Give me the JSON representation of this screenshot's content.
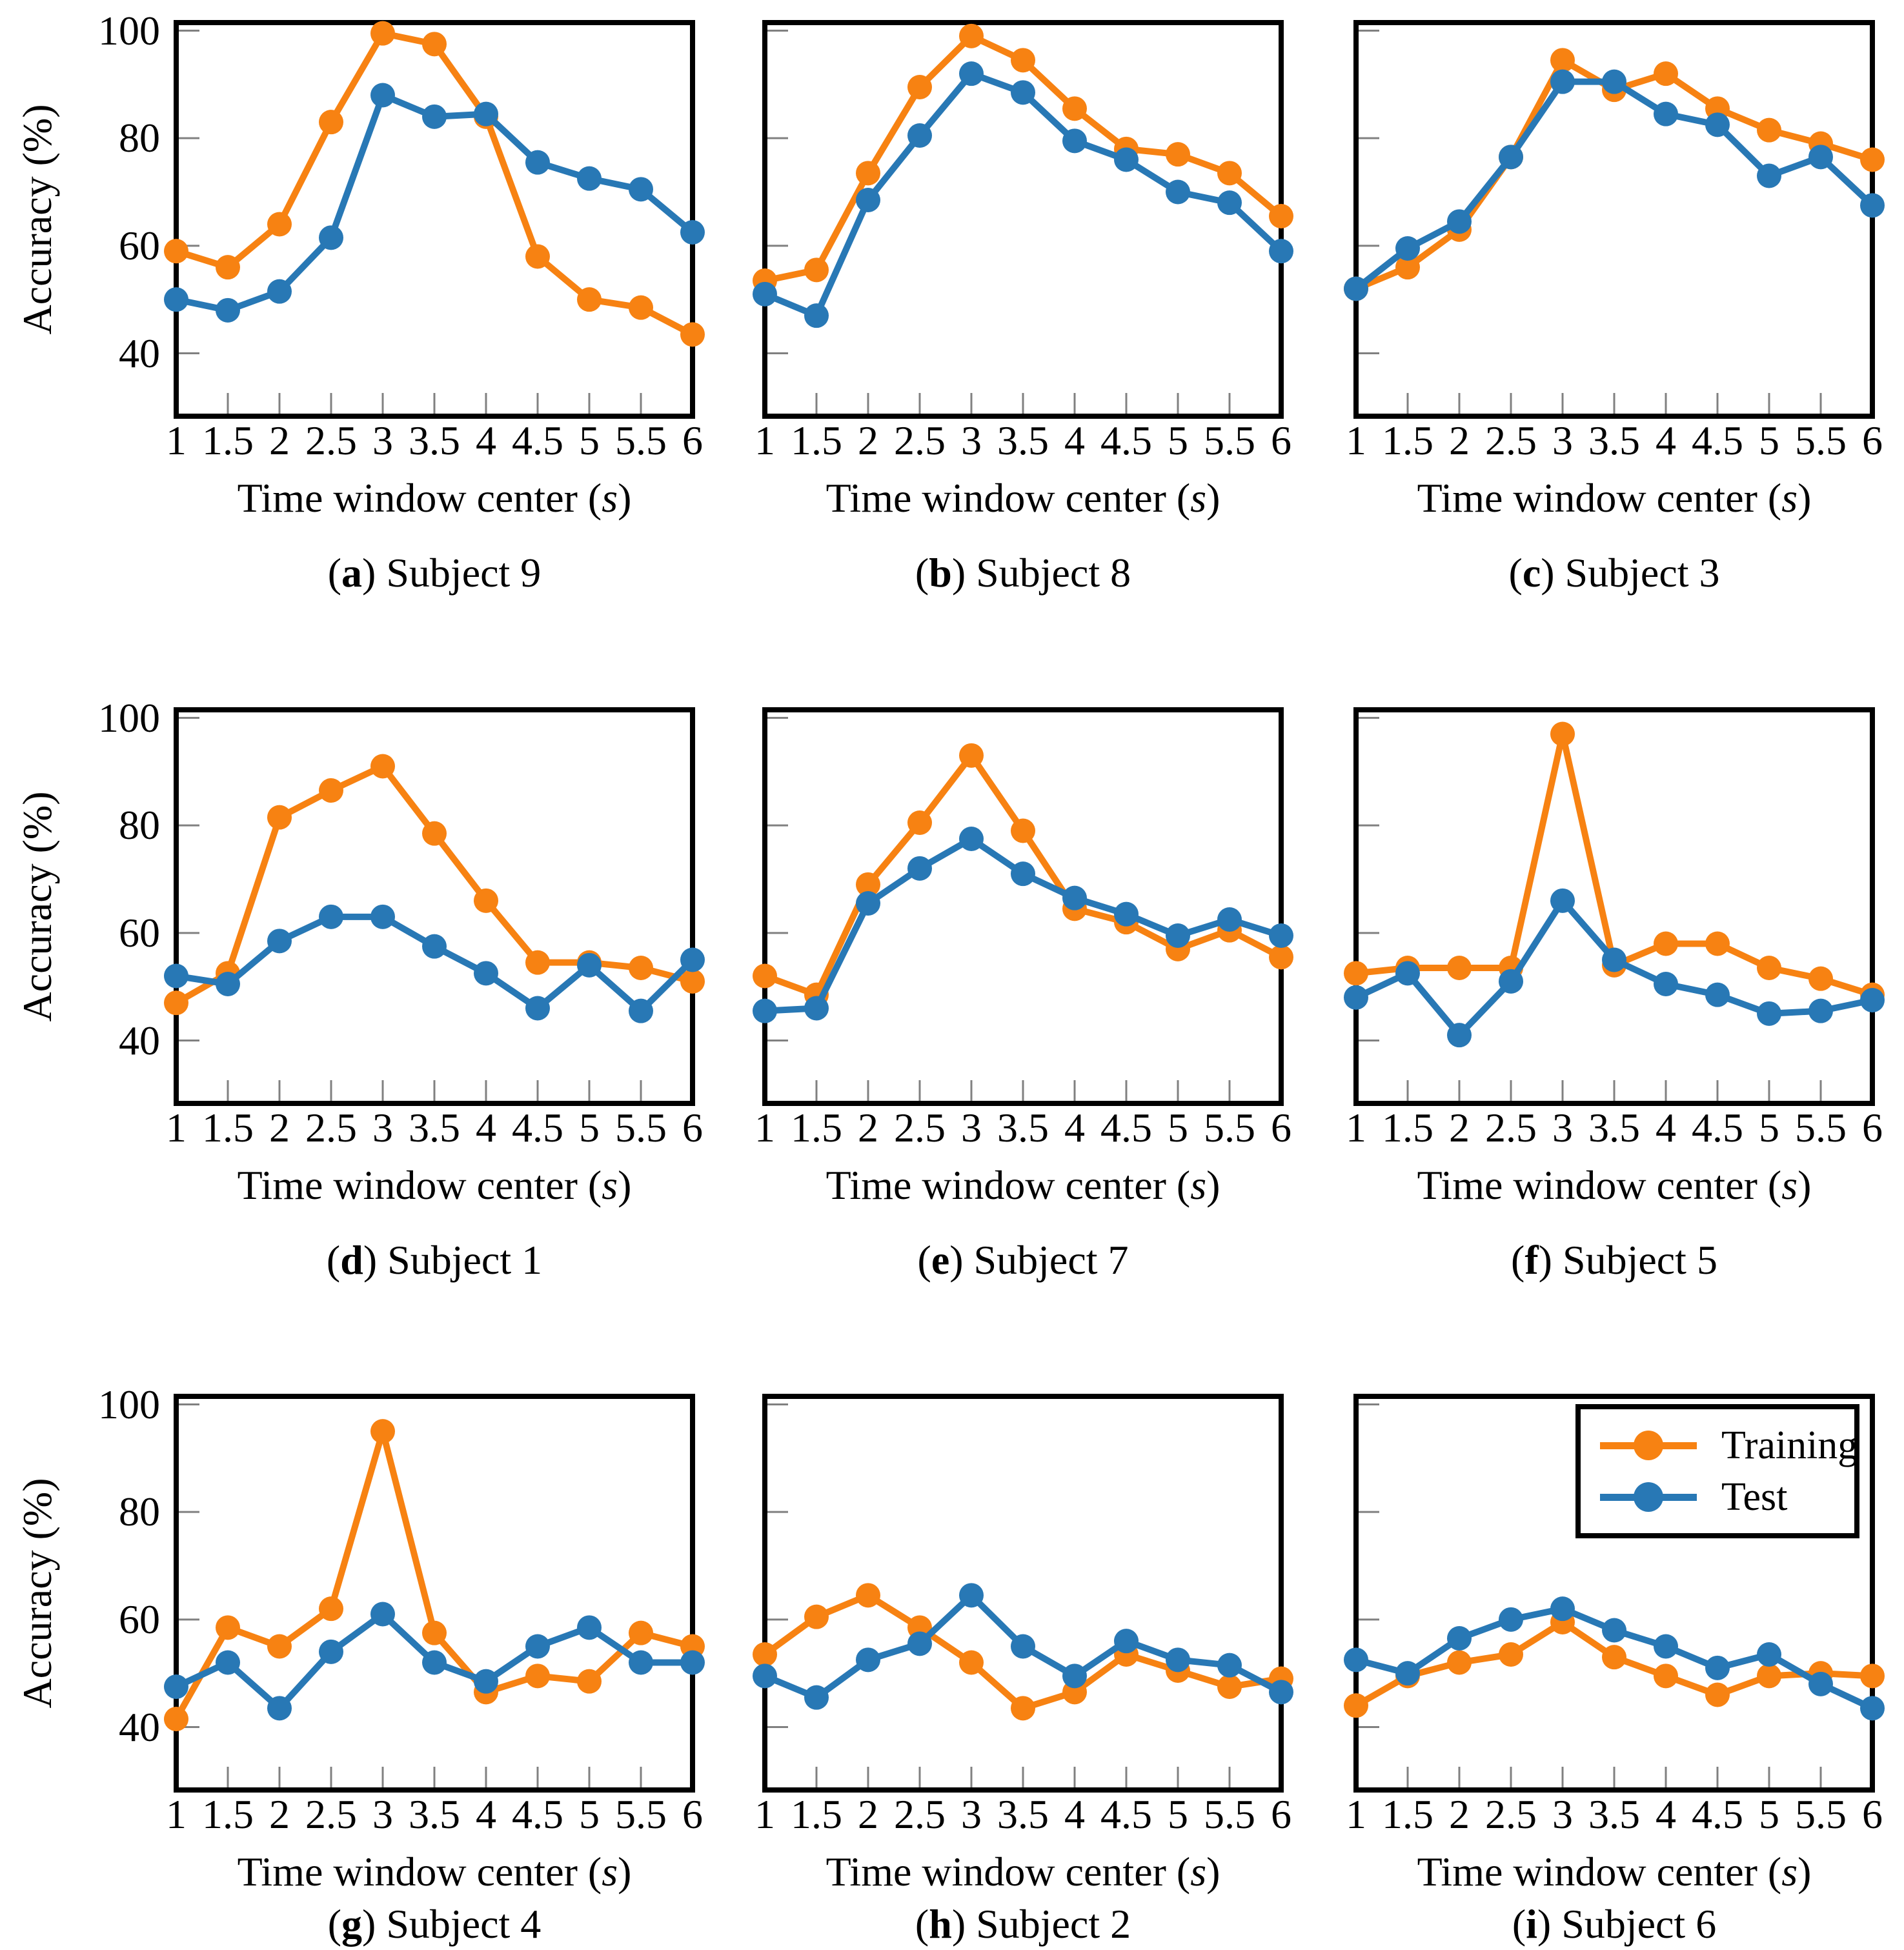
{
  "figure": {
    "ylabel": "Accuracy (%)",
    "xlabel_prefix": "Time window center (",
    "xlabel_s": "s",
    "xlabel_suffix": ")",
    "x_tick_labels": [
      "1",
      "1.5",
      "2",
      "2.5",
      "3",
      "3.5",
      "4",
      "4.5",
      "5",
      "5.5",
      "6"
    ],
    "y_tick_labels": [
      "100",
      "80",
      "60",
      "40"
    ],
    "colors": {
      "training": "#F78212",
      "test": "#2878B5",
      "tick": "#808080",
      "frame": "#000000",
      "background": "#FFFFFF"
    },
    "legend": {
      "items": [
        {
          "label": "Training",
          "color_key": "training"
        },
        {
          "label": "Test",
          "color_key": "test"
        }
      ]
    }
  },
  "chart_data": [
    {
      "type": "line",
      "panel": "a",
      "subject": "Subject 9",
      "x": [
        1,
        1.5,
        2,
        2.5,
        3,
        3.5,
        4,
        4.5,
        5,
        5.5,
        6
      ],
      "xlabel": "Time window center (s)",
      "ylabel": "Accuracy (%)",
      "ylim": [
        28.3,
        101.5
      ],
      "yticks": [
        40,
        60,
        80,
        100
      ],
      "grid": false,
      "series": [
        {
          "name": "Training",
          "values": [
            59,
            56,
            64,
            83,
            99.5,
            97.5,
            84,
            58,
            50,
            48.5,
            43.5
          ]
        },
        {
          "name": "Test",
          "values": [
            50,
            48,
            51.5,
            61.5,
            88,
            84,
            84.5,
            75.5,
            72.5,
            70.5,
            62.5
          ]
        }
      ]
    },
    {
      "type": "line",
      "panel": "b",
      "subject": "Subject 8",
      "x": [
        1,
        1.5,
        2,
        2.5,
        3,
        3.5,
        4,
        4.5,
        5,
        5.5,
        6
      ],
      "xlabel": "Time window center (s)",
      "ylabel": "Accuracy (%)",
      "ylim": [
        28.3,
        101.5
      ],
      "yticks": [
        40,
        60,
        80,
        100
      ],
      "grid": false,
      "series": [
        {
          "name": "Training",
          "values": [
            53.5,
            55.5,
            73.5,
            89.5,
            99,
            94.5,
            85.5,
            78,
            77,
            73.5,
            65.5
          ]
        },
        {
          "name": "Test",
          "values": [
            51,
            47,
            68.5,
            80.5,
            92,
            88.5,
            79.5,
            76,
            70,
            68,
            59
          ]
        }
      ]
    },
    {
      "type": "line",
      "panel": "c",
      "subject": "Subject 3",
      "x": [
        1,
        1.5,
        2,
        2.5,
        3,
        3.5,
        4,
        4.5,
        5,
        5.5,
        6
      ],
      "xlabel": "Time window center (s)",
      "ylabel": "Accuracy (%)",
      "ylim": [
        28.3,
        101.5
      ],
      "yticks": [
        40,
        60,
        80,
        100
      ],
      "grid": false,
      "series": [
        {
          "name": "Training",
          "values": [
            52,
            56,
            63,
            76.5,
            94.5,
            89,
            92,
            85.5,
            81.5,
            79,
            76
          ]
        },
        {
          "name": "Test",
          "values": [
            52,
            59.5,
            64.5,
            76.5,
            90.5,
            90.5,
            84.5,
            82.5,
            73,
            76.5,
            67.5
          ]
        }
      ]
    },
    {
      "type": "line",
      "panel": "d",
      "subject": "Subject 1",
      "x": [
        1,
        1.5,
        2,
        2.5,
        3,
        3.5,
        4,
        4.5,
        5,
        5.5,
        6
      ],
      "xlabel": "Time window center (s)",
      "ylabel": "Accuracy (%)",
      "ylim": [
        28.3,
        101.5
      ],
      "yticks": [
        40,
        60,
        80,
        100
      ],
      "grid": false,
      "series": [
        {
          "name": "Training",
          "values": [
            47,
            52.5,
            81.5,
            86.5,
            91,
            78.5,
            66,
            54.5,
            54.5,
            53.5,
            51
          ]
        },
        {
          "name": "Test",
          "values": [
            52,
            50.5,
            58.5,
            63,
            63,
            57.5,
            52.5,
            46,
            54,
            45.5,
            55
          ]
        }
      ]
    },
    {
      "type": "line",
      "panel": "e",
      "subject": "Subject 7",
      "x": [
        1,
        1.5,
        2,
        2.5,
        3,
        3.5,
        4,
        4.5,
        5,
        5.5,
        6
      ],
      "xlabel": "Time window center (s)",
      "ylabel": "Accuracy (%)",
      "ylim": [
        28.3,
        101.5
      ],
      "yticks": [
        40,
        60,
        80,
        100
      ],
      "grid": false,
      "series": [
        {
          "name": "Training",
          "values": [
            52,
            48.5,
            69,
            80.5,
            93,
            79,
            64.5,
            62,
            57,
            60.5,
            55.5
          ]
        },
        {
          "name": "Test",
          "values": [
            45.5,
            46,
            65.5,
            72,
            77.5,
            71,
            66.5,
            63.5,
            59.5,
            62.5,
            59.5
          ]
        }
      ]
    },
    {
      "type": "line",
      "panel": "f",
      "subject": "Subject 5",
      "x": [
        1,
        1.5,
        2,
        2.5,
        3,
        3.5,
        4,
        4.5,
        5,
        5.5,
        6
      ],
      "xlabel": "Time window center (s)",
      "ylabel": "Accuracy (%)",
      "ylim": [
        28.3,
        101.5
      ],
      "yticks": [
        40,
        60,
        80,
        100
      ],
      "grid": false,
      "series": [
        {
          "name": "Training",
          "values": [
            52.5,
            53.5,
            53.5,
            53.5,
            97,
            54,
            58,
            58,
            53.5,
            51.5,
            48.5
          ]
        },
        {
          "name": "Test",
          "values": [
            48,
            52.5,
            41,
            51,
            66,
            55,
            50.5,
            48.5,
            45,
            45.5,
            47.5
          ]
        }
      ]
    },
    {
      "type": "line",
      "panel": "g",
      "subject": "Subject 4",
      "x": [
        1,
        1.5,
        2,
        2.5,
        3,
        3.5,
        4,
        4.5,
        5,
        5.5,
        6
      ],
      "xlabel": "Time window center (s)",
      "ylabel": "Accuracy (%)",
      "ylim": [
        28.3,
        101.5
      ],
      "yticks": [
        40,
        60,
        80,
        100
      ],
      "grid": false,
      "series": [
        {
          "name": "Training",
          "values": [
            41.5,
            58.5,
            55,
            62,
            95,
            57.5,
            46.5,
            49.5,
            48.5,
            57.5,
            55
          ]
        },
        {
          "name": "Test",
          "values": [
            47.5,
            52,
            43.5,
            54,
            61,
            52,
            48.5,
            55,
            58.5,
            52,
            52
          ]
        }
      ]
    },
    {
      "type": "line",
      "panel": "h",
      "subject": "Subject 2",
      "x": [
        1,
        1.5,
        2,
        2.5,
        3,
        3.5,
        4,
        4.5,
        5,
        5.5,
        6
      ],
      "xlabel": "Time window center (s)",
      "ylabel": "Accuracy (%)",
      "ylim": [
        28.3,
        101.5
      ],
      "yticks": [
        40,
        60,
        80,
        100
      ],
      "grid": false,
      "series": [
        {
          "name": "Training",
          "values": [
            53.5,
            60.5,
            64.5,
            58.5,
            52,
            43.5,
            46.5,
            53.5,
            50.5,
            47.5,
            49
          ]
        },
        {
          "name": "Test",
          "values": [
            49.5,
            45.5,
            52.5,
            55.5,
            64.5,
            55,
            49.5,
            56,
            52.5,
            51.5,
            46.5
          ]
        }
      ]
    },
    {
      "type": "line",
      "panel": "i",
      "subject": "Subject 6",
      "legend_position": "top-right",
      "x": [
        1,
        1.5,
        2,
        2.5,
        3,
        3.5,
        4,
        4.5,
        5,
        5.5,
        6
      ],
      "xlabel": "Time window center (s)",
      "ylabel": "Accuracy (%)",
      "ylim": [
        28.3,
        101.5
      ],
      "yticks": [
        40,
        60,
        80,
        100
      ],
      "grid": false,
      "series": [
        {
          "name": "Training",
          "values": [
            44,
            49.5,
            52,
            53.5,
            59.5,
            53,
            49.5,
            46,
            49.5,
            50,
            49.5
          ]
        },
        {
          "name": "Test",
          "values": [
            52.5,
            50,
            56.5,
            60,
            62,
            58,
            55,
            51,
            53.5,
            48,
            43.5
          ]
        }
      ]
    }
  ]
}
